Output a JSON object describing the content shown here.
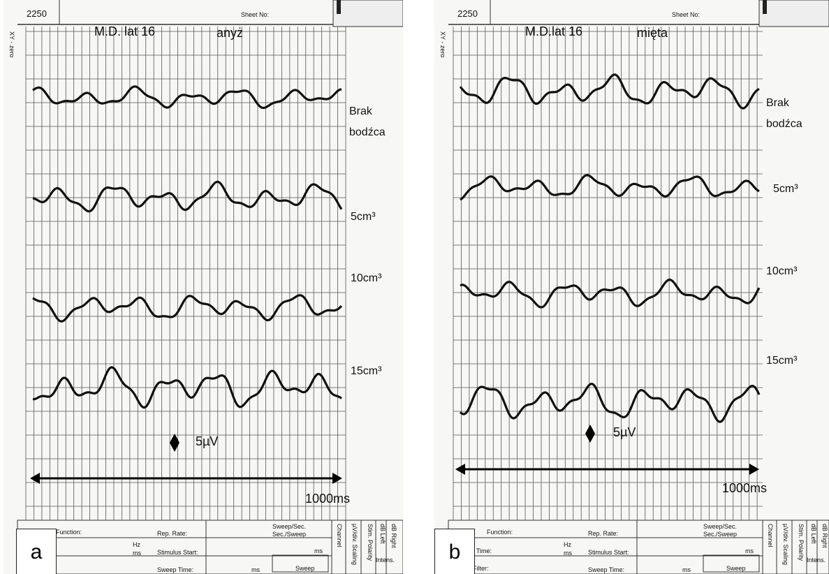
{
  "panels": [
    {
      "letter": "a",
      "sheet_number": "2250",
      "sheet_label": "Sheet No:",
      "side_label": "XY - zero",
      "subject": "M.D. lat 16",
      "substance": "anyż",
      "trace_labels": [
        "Brak bodźca",
        "5cm³",
        "10cm³",
        "15cm³"
      ],
      "scale_label": "5µV",
      "time_label": "1000ms",
      "form": {
        "function": "Function:",
        "hz": "Hz",
        "ms1": "ms",
        "rep_rate": "Rep. Rate:",
        "sweep_sec": "Sweep/Sec.",
        "sec_sweep": "Sec./Sweep",
        "stimulus_start": "Stimulus Start:",
        "ms2": "ms",
        "sweep_time": "Sweep Time:",
        "ms3": "ms",
        "channel": "Channel",
        "scaling": "µV/div. Scaling",
        "polarity": "Stim. Polarity",
        "db_left": "dB Left",
        "db_right": "dB Right",
        "intens": "Intens.",
        "sweep": "Sweep"
      }
    },
    {
      "letter": "b",
      "sheet_number": "2250",
      "sheet_label": "Sheet No:",
      "side_label": "XY - zero",
      "subject": "M.D.lat 16",
      "substance": "mięta",
      "trace_labels": [
        "Brak bodźca",
        "5cm³",
        "10cm³",
        "15cm³"
      ],
      "scale_label": "5µV",
      "time_label": "1000ms",
      "form": {
        "function": "Function:",
        "time": "/ Time:",
        "filter": "Filter:",
        "hz": "Hz",
        "ms1": "ms",
        "rep_rate": "Rep. Rate:",
        "sweep_sec": "Sweep/Sec.",
        "sec_sweep": "Sec./Sweep",
        "stimulus_start": "Stimulus Start:",
        "ms2": "ms",
        "sweep_time": "Sweep Time:",
        "ms3": "ms",
        "channel": "Channel",
        "scaling": "µV/div. Scaling",
        "polarity": "Stim. Polarity",
        "db_left": "dB Left",
        "db_right": "dB Right",
        "intens": "Intens.",
        "sweep": "Sweep"
      }
    }
  ]
}
